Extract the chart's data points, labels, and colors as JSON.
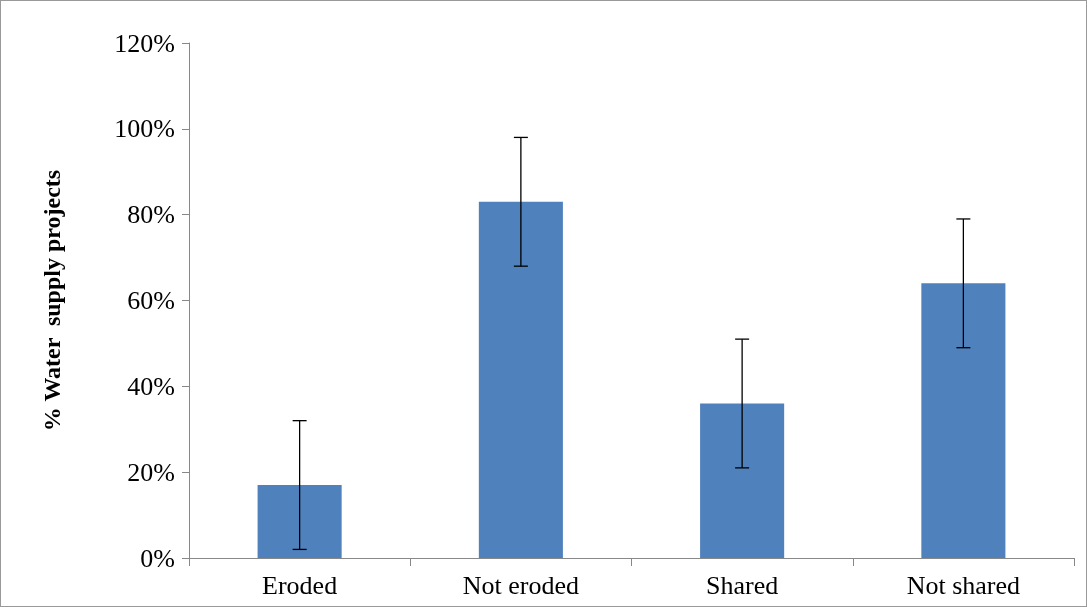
{
  "chart_data": {
    "type": "bar",
    "ylabel": "% Water  supply projects",
    "categories": [
      "Eroded",
      "Not eroded",
      "Shared",
      "Not shared"
    ],
    "values": [
      17,
      83,
      36,
      64
    ],
    "errors": [
      15,
      15,
      15,
      15
    ],
    "color": "#4f81bd",
    "ylim": [
      0,
      120
    ],
    "yticks": [
      {
        "value": 0,
        "label": "0%"
      },
      {
        "value": 20,
        "label": "20%"
      },
      {
        "value": 40,
        "label": "40%"
      },
      {
        "value": 60,
        "label": "60%"
      },
      {
        "value": 80,
        "label": "80%"
      },
      {
        "value": 100,
        "label": "100%"
      },
      {
        "value": 120,
        "label": "120%"
      }
    ],
    "grid": false
  }
}
